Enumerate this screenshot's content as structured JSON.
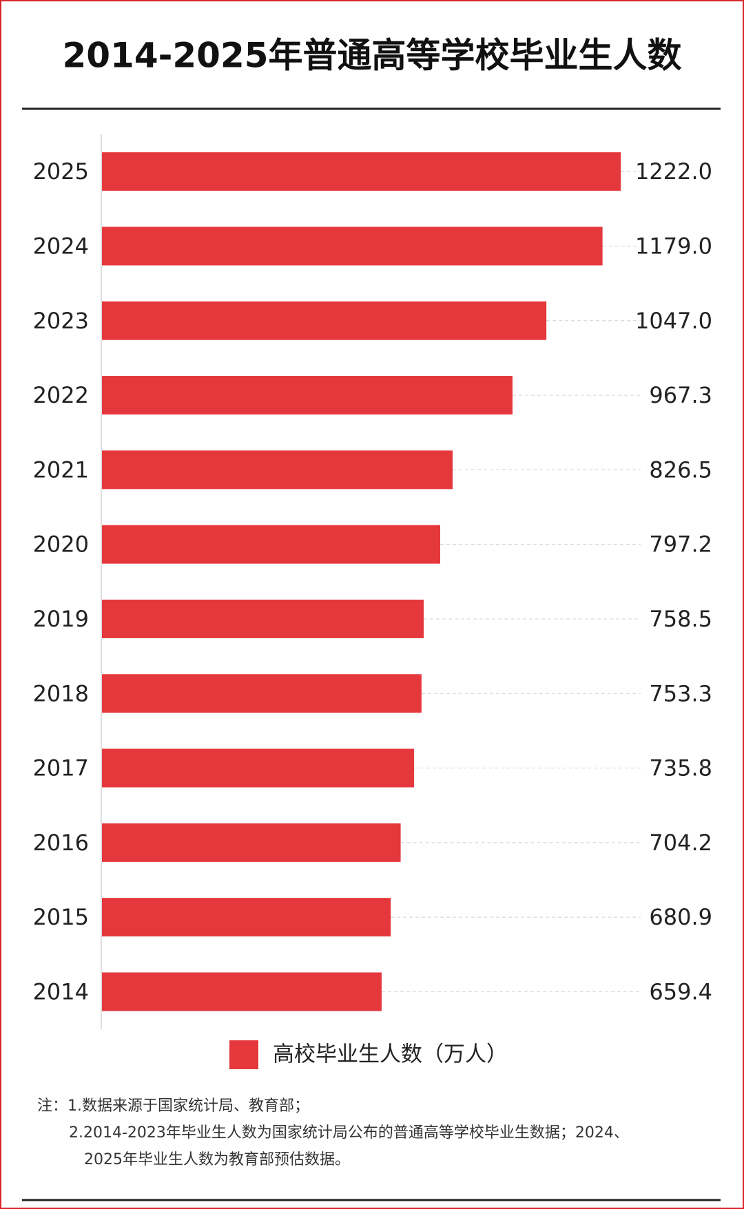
{
  "chart_data": {
    "type": "barh",
    "title": "2014-2025年普通高等学校毕业生人数",
    "categories": [
      "2025",
      "2024",
      "2023",
      "2022",
      "2021",
      "2020",
      "2019",
      "2018",
      "2017",
      "2016",
      "2015",
      "2014"
    ],
    "series": [
      {
        "name": "高校毕业生人数（万人）",
        "color": "#e5383d",
        "values": [
          1222.0,
          1179.0,
          1047.0,
          967.3,
          826.5,
          797.2,
          758.5,
          753.3,
          735.8,
          704.2,
          680.9,
          659.4
        ],
        "value_labels": [
          "1222.0",
          "1179.0",
          "1047.0",
          "967.3",
          "826.5",
          "797.2",
          "758.5",
          "753.3",
          "735.8",
          "704.2",
          "680.9",
          "659.4"
        ]
      }
    ],
    "xlim": [
      0,
      1400
    ],
    "legend": "bottom",
    "notes": [
      "注：1.数据来源于国家统计局、教育部；",
      "2.2014-2023年毕业生人数为国家统计局公布的普通高等学校毕业生数据；2024、",
      "2025年毕业生人数为教育部预估数据。"
    ]
  }
}
